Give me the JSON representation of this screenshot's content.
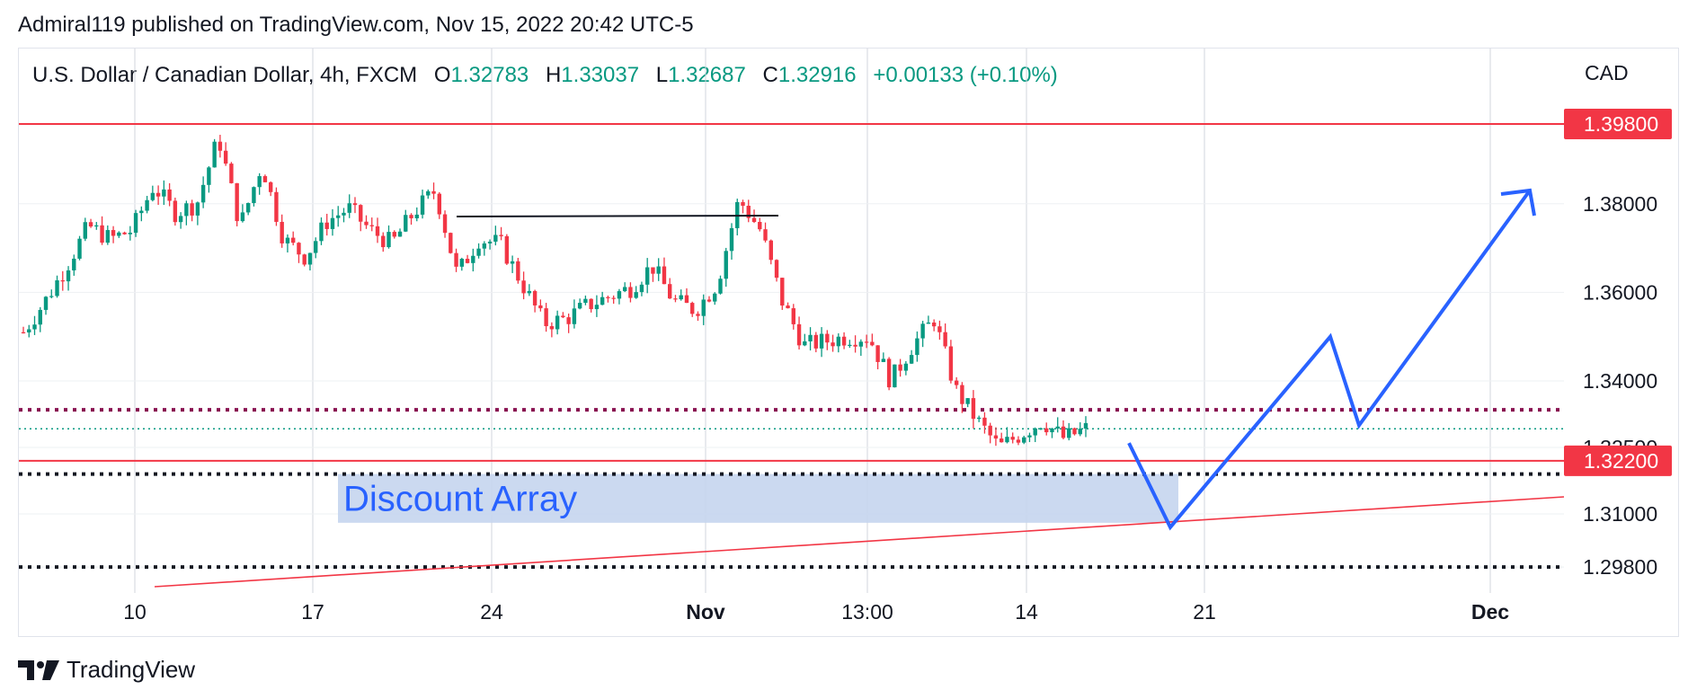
{
  "publisher_line": "Admiral119 published on TradingView.com, Nov 15, 2022 20:42 UTC-5",
  "legend": {
    "symbol": "U.S. Dollar / Canadian Dollar, 4h, FXCM",
    "open_label": "O",
    "open": "1.32783",
    "high_label": "H",
    "high": "1.33037",
    "low_label": "L",
    "low": "1.32687",
    "close_label": "C",
    "close": "1.32916",
    "change": "+0.00133 (+0.10%)"
  },
  "currency": "CAD",
  "footer": {
    "brand": "TradingView"
  },
  "colors": {
    "up": "#089981",
    "down": "#f23645",
    "projection": "#2962ff",
    "zone": "#c5d5ee",
    "grid": "#d1d4dc",
    "level": "#f23645"
  },
  "chart_data": {
    "type": "candlestick",
    "symbol": "USDCAD",
    "timeframe": "4h",
    "ylim": [
      1.295,
      1.4
    ],
    "y_ticks": [
      "1.29800",
      "1.31000",
      "1.32500",
      "1.34000",
      "1.36000",
      "1.38000"
    ],
    "x_ticks": [
      {
        "label": "10",
        "bold": false
      },
      {
        "label": "17",
        "bold": false
      },
      {
        "label": "24",
        "bold": false
      },
      {
        "label": "Nov",
        "bold": true
      },
      {
        "label": "13:00",
        "bold": false
      },
      {
        "label": "14",
        "bold": false
      },
      {
        "label": "21",
        "bold": false
      },
      {
        "label": "Dec",
        "bold": true
      }
    ],
    "price_labels": [
      {
        "label": "1.39800",
        "value": 1.398
      },
      {
        "label": "1.32200",
        "value": 1.322
      }
    ],
    "horizontal_levels": [
      {
        "value": 1.398,
        "style": "solid",
        "color": "#f23645"
      },
      {
        "value": 1.322,
        "style": "solid",
        "color": "#f23645"
      },
      {
        "value": 1.3335,
        "style": "dotted",
        "color": "#880e4f"
      },
      {
        "value": 1.3292,
        "style": "dotted-thin",
        "color": "#089981"
      },
      {
        "value": 1.319,
        "style": "dotted",
        "color": "#131722"
      },
      {
        "value": 1.298,
        "style": "dotted",
        "color": "#131722"
      }
    ],
    "zone": {
      "label": "Discount Array",
      "top": 1.319,
      "bottom": 1.308
    },
    "ohlc_path": [
      1.351,
      1.358,
      1.366,
      1.375,
      1.372,
      1.374,
      1.384,
      1.378,
      1.38,
      1.395,
      1.375,
      1.389,
      1.372,
      1.368,
      1.376,
      1.379,
      1.374,
      1.371,
      1.378,
      1.383,
      1.364,
      1.372,
      1.371,
      1.362,
      1.353,
      1.354,
      1.357,
      1.359,
      1.361,
      1.366,
      1.358,
      1.356,
      1.362,
      1.381,
      1.374,
      1.358,
      1.348,
      1.349,
      1.35,
      1.35,
      1.34,
      1.348,
      1.354,
      1.338,
      1.331,
      1.325,
      1.328,
      1.331,
      1.327,
      1.3292
    ],
    "projection_path": [
      1.326,
      1.307,
      1.35,
      1.33,
      1.383
    ]
  }
}
